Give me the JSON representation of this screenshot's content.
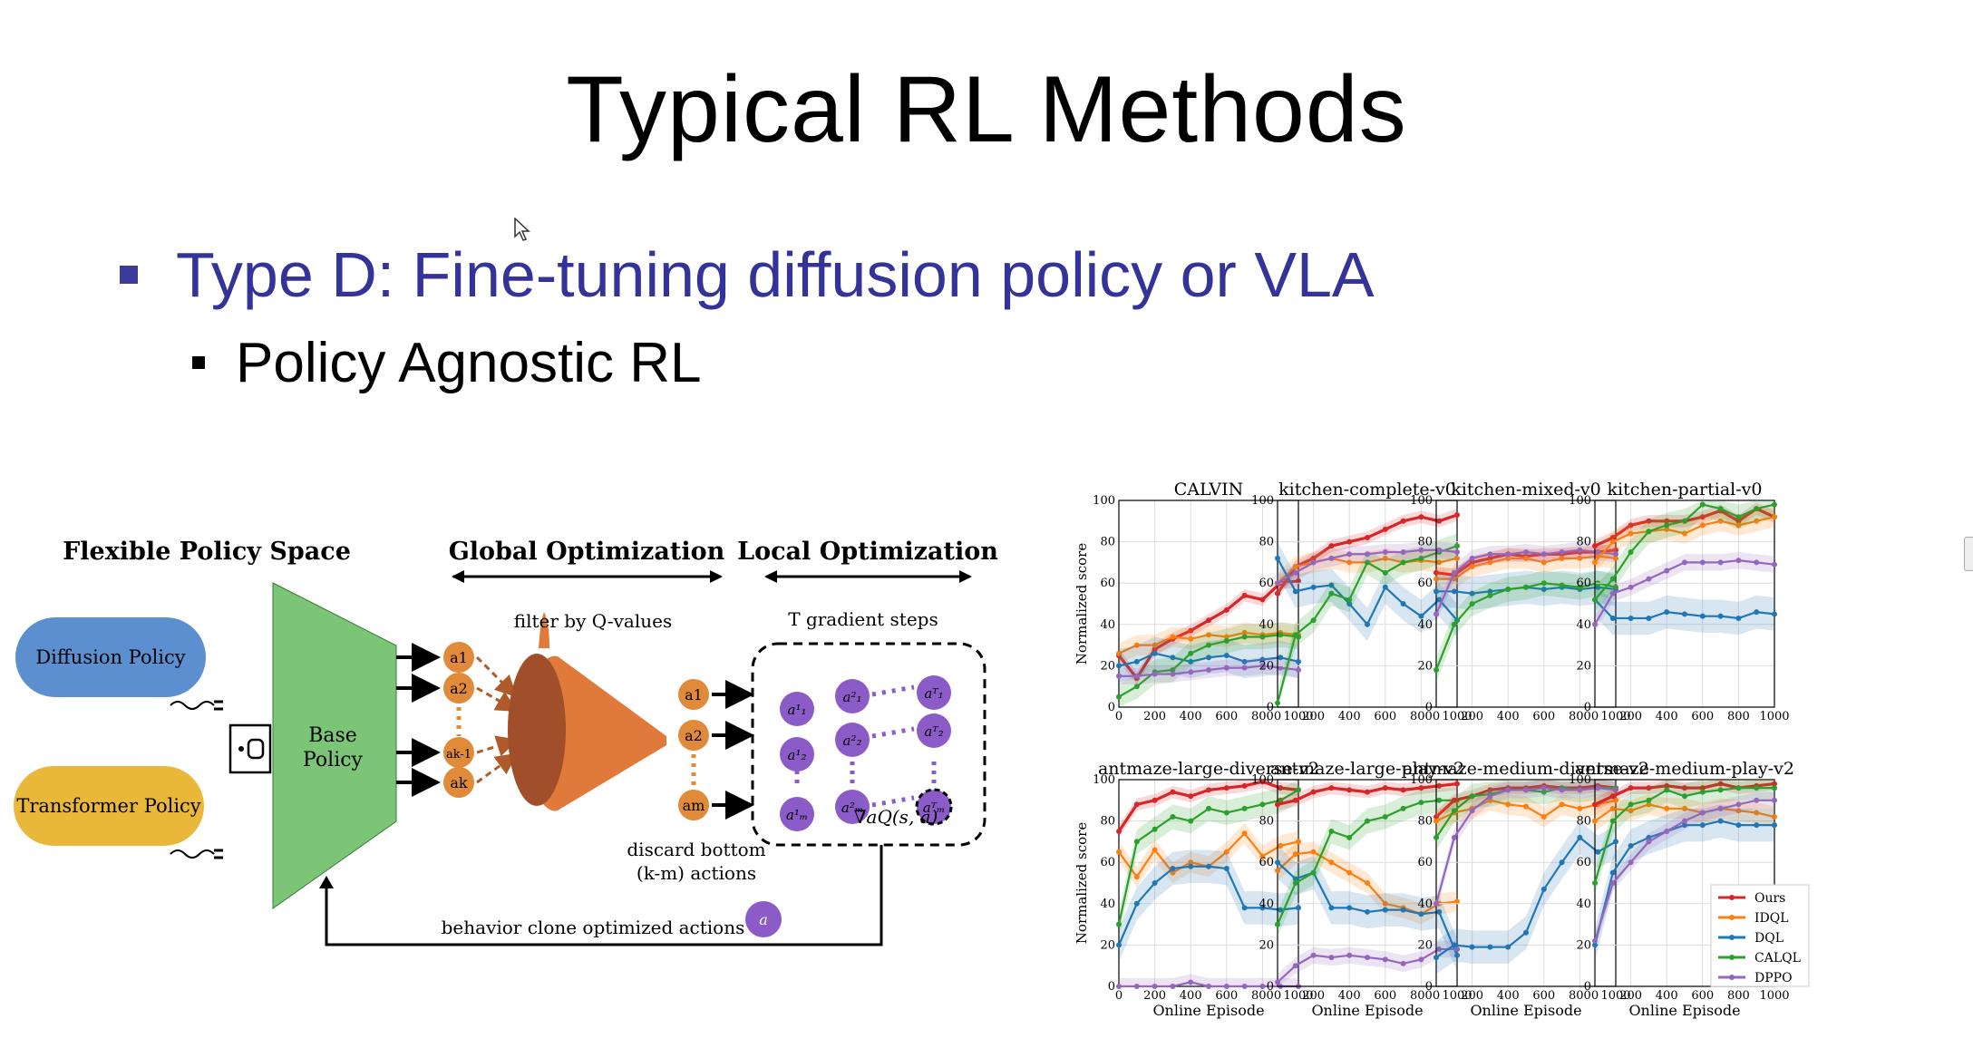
{
  "slide": {
    "title": "Typical RL Methods",
    "bullet_1": "Type D: Fine-tuning diffusion policy or VLA",
    "bullet_2": "Policy Agnostic RL"
  },
  "colors": {
    "bullet_1": "#33339a",
    "base_policy": "#7cc576",
    "diffusion": "#5b8fd0",
    "transformer": "#e9b83a",
    "action": "#e08a3a",
    "refined": "#8b5cc8"
  },
  "diagram": {
    "heading_space": "Flexible Policy Space",
    "heading_global": "Global Optimization",
    "heading_local": "Local Optimization",
    "diffusion_policy": "Diffusion Policy",
    "transformer_policy": "Transformer Policy",
    "base_policy": "Base Policy",
    "filter_label": "filter by Q-values",
    "gradient_label": "T gradient steps",
    "discard_label": "discard bottom (k-m) actions",
    "bc_label": "behavior clone optimized actions",
    "grad_q": "∇aQ(s, a)"
  },
  "chart_data": [
    {
      "type": "line",
      "title": "CALVIN",
      "x": [
        0,
        100,
        200,
        300,
        400,
        500,
        600,
        700,
        800,
        900,
        1000
      ],
      "ylim": [
        0,
        100
      ],
      "ylabel": "Normalized score",
      "xlabel": "",
      "series": [
        {
          "name": "Ours",
          "values": [
            25,
            14,
            28,
            33,
            37,
            42,
            47,
            54,
            52,
            60,
            61
          ]
        },
        {
          "name": "IDQL",
          "values": [
            26,
            30,
            30,
            34,
            33,
            35,
            34,
            36,
            35,
            36,
            35
          ]
        },
        {
          "name": "DQL",
          "values": [
            20,
            22,
            26,
            24,
            22,
            24,
            25,
            22,
            23,
            24,
            22
          ]
        },
        {
          "name": "CALQL",
          "values": [
            5,
            10,
            17,
            18,
            26,
            30,
            32,
            34,
            34,
            35,
            34
          ]
        },
        {
          "name": "DPPO",
          "values": [
            15,
            15,
            16,
            16,
            17,
            18,
            19,
            19,
            20,
            19,
            18
          ]
        }
      ]
    },
    {
      "type": "line",
      "title": "kitchen-complete-v0",
      "x": [
        0,
        100,
        200,
        300,
        400,
        500,
        600,
        700,
        800,
        900,
        1000
      ],
      "ylim": [
        0,
        100
      ],
      "ylabel": "",
      "xlabel": "",
      "series": [
        {
          "name": "Ours",
          "values": [
            55,
            68,
            72,
            78,
            80,
            82,
            86,
            90,
            92,
            90,
            93
          ]
        },
        {
          "name": "IDQL",
          "values": [
            60,
            68,
            70,
            72,
            70,
            70,
            72,
            70,
            71,
            70,
            72
          ]
        },
        {
          "name": "DQL",
          "values": [
            72,
            56,
            58,
            59,
            50,
            40,
            58,
            50,
            44,
            52,
            42
          ]
        },
        {
          "name": "CALQL",
          "values": [
            2,
            35,
            42,
            55,
            52,
            70,
            65,
            70,
            72,
            75,
            78
          ]
        },
        {
          "name": "DPPO",
          "values": [
            60,
            65,
            70,
            72,
            74,
            74,
            75,
            75,
            76,
            76,
            75
          ]
        }
      ]
    },
    {
      "type": "line",
      "title": "kitchen-mixed-v0",
      "x": [
        0,
        100,
        200,
        300,
        400,
        500,
        600,
        700,
        800,
        900,
        1000
      ],
      "ylim": [
        0,
        100
      ],
      "ylabel": "",
      "xlabel": "",
      "series": [
        {
          "name": "Ours",
          "values": [
            65,
            64,
            70,
            72,
            74,
            73,
            74,
            74,
            75,
            75,
            76
          ]
        },
        {
          "name": "IDQL",
          "values": [
            62,
            62,
            68,
            70,
            72,
            72,
            70,
            72,
            72,
            73,
            72
          ]
        },
        {
          "name": "DQL",
          "values": [
            56,
            56,
            55,
            56,
            57,
            58,
            57,
            58,
            57,
            58,
            57
          ]
        },
        {
          "name": "CALQL",
          "values": [
            18,
            40,
            50,
            54,
            57,
            58,
            60,
            59,
            58,
            60,
            58
          ]
        },
        {
          "name": "DPPO",
          "values": [
            45,
            65,
            72,
            74,
            74,
            75,
            74,
            75,
            76,
            75,
            74
          ]
        }
      ]
    },
    {
      "type": "line",
      "title": "kitchen-partial-v0",
      "x": [
        0,
        100,
        200,
        300,
        400,
        500,
        600,
        700,
        800,
        900,
        1000
      ],
      "ylim": [
        0,
        100
      ],
      "ylabel": "",
      "xlabel": "",
      "series": [
        {
          "name": "Ours",
          "values": [
            78,
            82,
            88,
            90,
            90,
            90,
            92,
            95,
            90,
            96,
            92
          ]
        },
        {
          "name": "IDQL",
          "values": [
            70,
            80,
            84,
            85,
            86,
            84,
            88,
            90,
            88,
            90,
            92
          ]
        },
        {
          "name": "DQL",
          "values": [
            52,
            43,
            43,
            43,
            46,
            45,
            44,
            44,
            43,
            46,
            45
          ]
        },
        {
          "name": "CALQL",
          "values": [
            52,
            62,
            75,
            85,
            88,
            90,
            98,
            96,
            92,
            96,
            98
          ]
        },
        {
          "name": "DPPO",
          "values": [
            40,
            55,
            58,
            62,
            66,
            70,
            70,
            70,
            71,
            70,
            69
          ]
        }
      ]
    },
    {
      "type": "line",
      "title": "antmaze-large-diverse-v2",
      "x": [
        0,
        100,
        200,
        300,
        400,
        500,
        600,
        700,
        800,
        900,
        1000
      ],
      "ylim": [
        0,
        100
      ],
      "ylabel": "Normalized score",
      "xlabel": "Online Episode",
      "series": [
        {
          "name": "Ours",
          "values": [
            75,
            88,
            90,
            94,
            92,
            95,
            96,
            97,
            99,
            96,
            95
          ]
        },
        {
          "name": "IDQL",
          "values": [
            65,
            53,
            66,
            55,
            60,
            58,
            65,
            74,
            63,
            68,
            70
          ]
        },
        {
          "name": "DQL",
          "values": [
            20,
            40,
            50,
            57,
            58,
            58,
            57,
            38,
            38,
            37,
            38
          ]
        },
        {
          "name": "CALQL",
          "values": [
            30,
            70,
            76,
            82,
            80,
            86,
            84,
            86,
            88,
            90,
            95
          ]
        },
        {
          "name": "DPPO",
          "values": [
            0,
            0,
            0,
            0,
            2,
            0,
            0,
            0,
            0,
            0,
            0
          ]
        }
      ]
    },
    {
      "type": "line",
      "title": "antmaze-large-play-v2",
      "x": [
        0,
        100,
        200,
        300,
        400,
        500,
        600,
        700,
        800,
        900,
        1000
      ],
      "ylim": [
        0,
        100
      ],
      "ylabel": "",
      "xlabel": "Online Episode",
      "series": [
        {
          "name": "Ours",
          "values": [
            88,
            90,
            94,
            96,
            95,
            94,
            96,
            95,
            96,
            97,
            98
          ]
        },
        {
          "name": "IDQL",
          "values": [
            56,
            64,
            65,
            60,
            55,
            50,
            40,
            38,
            35,
            40,
            41
          ]
        },
        {
          "name": "DQL",
          "values": [
            60,
            52,
            55,
            38,
            38,
            36,
            37,
            37,
            35,
            36,
            15
          ]
        },
        {
          "name": "CALQL",
          "values": [
            30,
            50,
            55,
            75,
            72,
            80,
            82,
            86,
            89,
            90,
            90
          ]
        },
        {
          "name": "DPPO",
          "values": [
            2,
            10,
            15,
            14,
            15,
            14,
            13,
            11,
            13,
            18,
            18
          ]
        }
      ]
    },
    {
      "type": "line",
      "title": "antmaze-medium-diverse-v2",
      "x": [
        0,
        100,
        200,
        300,
        400,
        500,
        600,
        700,
        800,
        900,
        1000
      ],
      "ylim": [
        0,
        100
      ],
      "ylabel": "",
      "xlabel": "Online Episode",
      "series": [
        {
          "name": "Ours",
          "values": [
            82,
            90,
            92,
            95,
            96,
            96,
            97,
            96,
            96,
            97,
            96
          ]
        },
        {
          "name": "IDQL",
          "values": [
            80,
            84,
            86,
            90,
            88,
            87,
            82,
            88,
            86,
            88,
            90
          ]
        },
        {
          "name": "DQL",
          "values": [
            14,
            20,
            19,
            19,
            19,
            26,
            47,
            60,
            72,
            65,
            70
          ]
        },
        {
          "name": "CALQL",
          "values": [
            72,
            85,
            92,
            93,
            95,
            95,
            94,
            96,
            95,
            96,
            96
          ]
        },
        {
          "name": "DPPO",
          "values": [
            40,
            72,
            85,
            92,
            95,
            95,
            96,
            95,
            95,
            96,
            95
          ]
        }
      ]
    },
    {
      "type": "line",
      "title": "antmaze-medium-play-v2",
      "x": [
        0,
        100,
        200,
        300,
        400,
        500,
        600,
        700,
        800,
        900,
        1000
      ],
      "ylim": [
        0,
        100
      ],
      "ylabel": "",
      "xlabel": "Online Episode",
      "series": [
        {
          "name": "Ours",
          "values": [
            88,
            92,
            96,
            96,
            97,
            96,
            96,
            98,
            96,
            97,
            98
          ]
        },
        {
          "name": "IDQL",
          "values": [
            80,
            86,
            85,
            88,
            86,
            86,
            84,
            86,
            85,
            84,
            82
          ]
        },
        {
          "name": "DQL",
          "values": [
            20,
            55,
            68,
            72,
            75,
            78,
            78,
            80,
            78,
            78,
            78
          ]
        },
        {
          "name": "CALQL",
          "values": [
            50,
            80,
            88,
            90,
            95,
            92,
            94,
            95,
            96,
            96,
            96
          ]
        },
        {
          "name": "DPPO",
          "values": [
            22,
            50,
            60,
            70,
            75,
            80,
            84,
            86,
            88,
            90,
            90
          ]
        }
      ]
    }
  ],
  "legend": [
    "Ours",
    "IDQL",
    "DQL",
    "CALQL",
    "DPPO"
  ],
  "series_colors": {
    "Ours": "#d62728",
    "IDQL": "#ff7f0e",
    "DQL": "#1f77b4",
    "CALQL": "#2ca02c",
    "DPPO": "#9467bd"
  }
}
